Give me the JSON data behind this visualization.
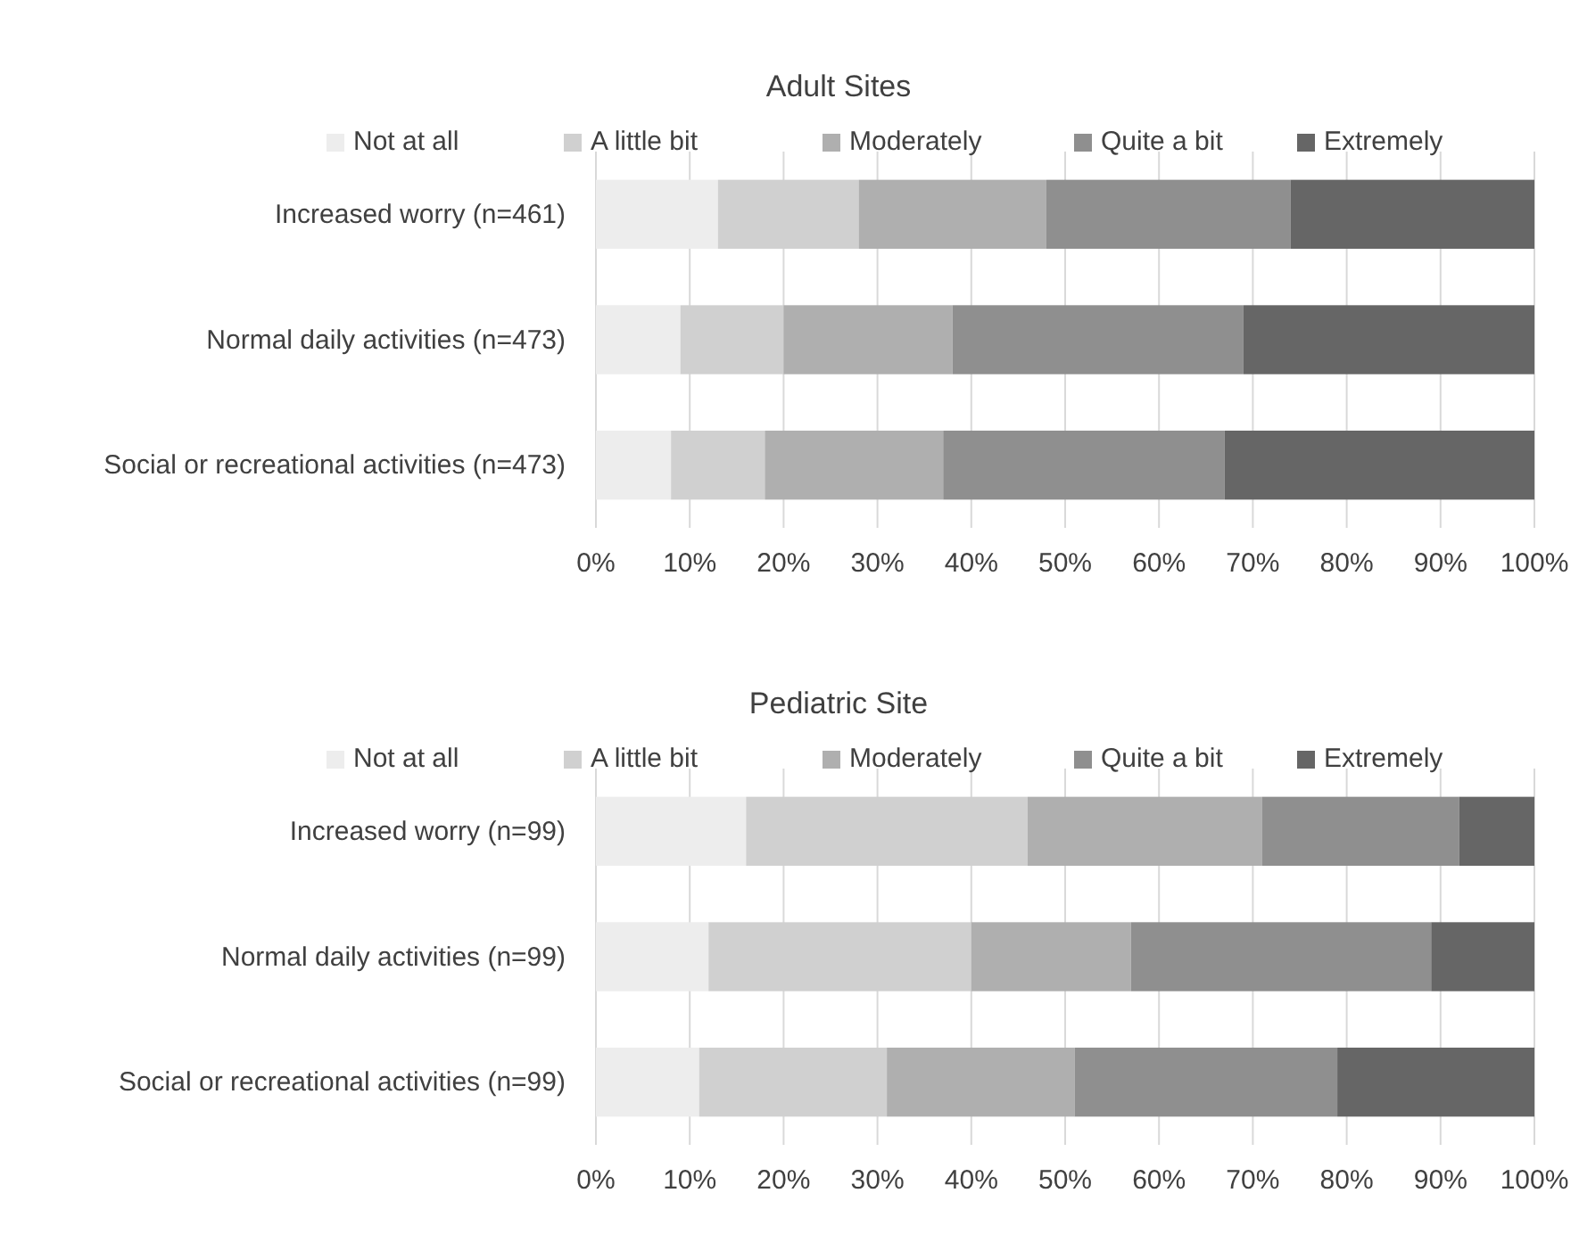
{
  "chart_data": [
    {
      "type": "bar",
      "title": "Adult Sites",
      "orientation": "horizontal",
      "stacked": true,
      "legend": "top",
      "grid": "x",
      "categories": [
        "Increased worry (n=461)",
        "Normal daily activities (n=473)",
        "Social or recreational activities (n=473)"
      ],
      "xlim": [
        0,
        100
      ],
      "xticks": [
        {
          "value": 0,
          "label": "0%"
        },
        {
          "value": 10,
          "label": "10%"
        },
        {
          "value": 20,
          "label": "20%"
        },
        {
          "value": 30,
          "label": "30%"
        },
        {
          "value": 40,
          "label": "40%"
        },
        {
          "value": 50,
          "label": "50%"
        },
        {
          "value": 60,
          "label": "60%"
        },
        {
          "value": 70,
          "label": "70%"
        },
        {
          "value": 80,
          "label": "80%"
        },
        {
          "value": 90,
          "label": "90%"
        },
        {
          "value": 100,
          "label": "100%"
        }
      ],
      "series": [
        {
          "name": "Not at all",
          "color": "#ededed",
          "values": [
            13,
            9,
            8
          ]
        },
        {
          "name": "A little bit",
          "color": "#d0d0d0",
          "values": [
            15,
            11,
            10
          ]
        },
        {
          "name": "Moderately",
          "color": "#afafaf",
          "values": [
            20,
            18,
            19
          ]
        },
        {
          "name": "Quite a bit",
          "color": "#8f8f8f",
          "values": [
            26,
            31,
            30
          ]
        },
        {
          "name": "Extremely",
          "color": "#666666",
          "values": [
            26,
            31,
            33
          ]
        }
      ]
    },
    {
      "type": "bar",
      "title": "Pediatric Site",
      "orientation": "horizontal",
      "stacked": true,
      "legend": "top",
      "grid": "x",
      "categories": [
        "Increased worry (n=99)",
        "Normal daily activities (n=99)",
        "Social or recreational activities (n=99)"
      ],
      "xlim": [
        0,
        100
      ],
      "xticks": [
        {
          "value": 0,
          "label": "0%"
        },
        {
          "value": 10,
          "label": "10%"
        },
        {
          "value": 20,
          "label": "20%"
        },
        {
          "value": 30,
          "label": "30%"
        },
        {
          "value": 40,
          "label": "40%"
        },
        {
          "value": 50,
          "label": "50%"
        },
        {
          "value": 60,
          "label": "60%"
        },
        {
          "value": 70,
          "label": "70%"
        },
        {
          "value": 80,
          "label": "80%"
        },
        {
          "value": 90,
          "label": "90%"
        },
        {
          "value": 100,
          "label": "100%"
        }
      ],
      "series": [
        {
          "name": "Not at all",
          "color": "#ededed",
          "values": [
            16,
            12,
            11
          ]
        },
        {
          "name": "A little bit",
          "color": "#d0d0d0",
          "values": [
            30,
            28,
            20
          ]
        },
        {
          "name": "Moderately",
          "color": "#afafaf",
          "values": [
            25,
            17,
            20
          ]
        },
        {
          "name": "Quite a bit",
          "color": "#8f8f8f",
          "values": [
            21,
            32,
            28
          ]
        },
        {
          "name": "Extremely",
          "color": "#666666",
          "values": [
            8,
            11,
            21
          ]
        }
      ]
    }
  ]
}
